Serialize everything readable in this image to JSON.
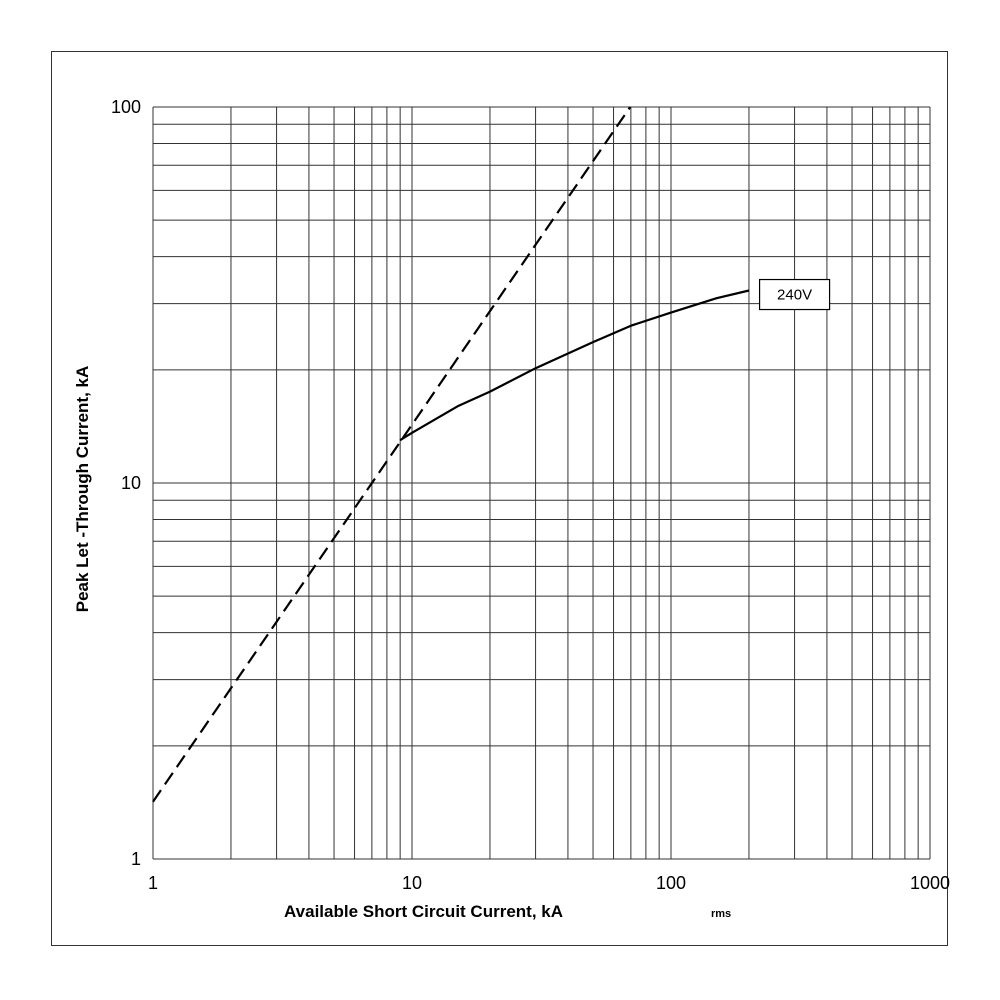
{
  "chart_data": {
    "type": "line",
    "xlabel": "Available Short Circuit Current, kA",
    "xlabel_sub": "rms",
    "ylabel": "Peak Let -Through Current, kA",
    "x_scale": "log",
    "y_scale": "log",
    "xlim": [
      1,
      1000
    ],
    "ylim": [
      1,
      100
    ],
    "grid": true,
    "x_ticks": [
      "1",
      "10",
      "100",
      "1000"
    ],
    "y_ticks": [
      "1",
      "10",
      "100"
    ],
    "series": [
      {
        "name": "",
        "style": "dashed",
        "x": [
          1,
          69.6
        ],
        "y": [
          1.42,
          100
        ]
      },
      {
        "name": "240V",
        "style": "solid",
        "x": [
          9,
          10,
          15,
          20,
          30,
          50,
          70,
          100,
          150,
          200
        ],
        "y": [
          13,
          13.6,
          16,
          17.5,
          20.2,
          23.7,
          26.2,
          28.4,
          31,
          32.5
        ]
      }
    ],
    "annotations": [
      {
        "text": "240V",
        "x": 300,
        "y": 32.5
      }
    ],
    "colors": {
      "line": "#000000",
      "grid": "#333333",
      "frame": "#333333"
    }
  }
}
